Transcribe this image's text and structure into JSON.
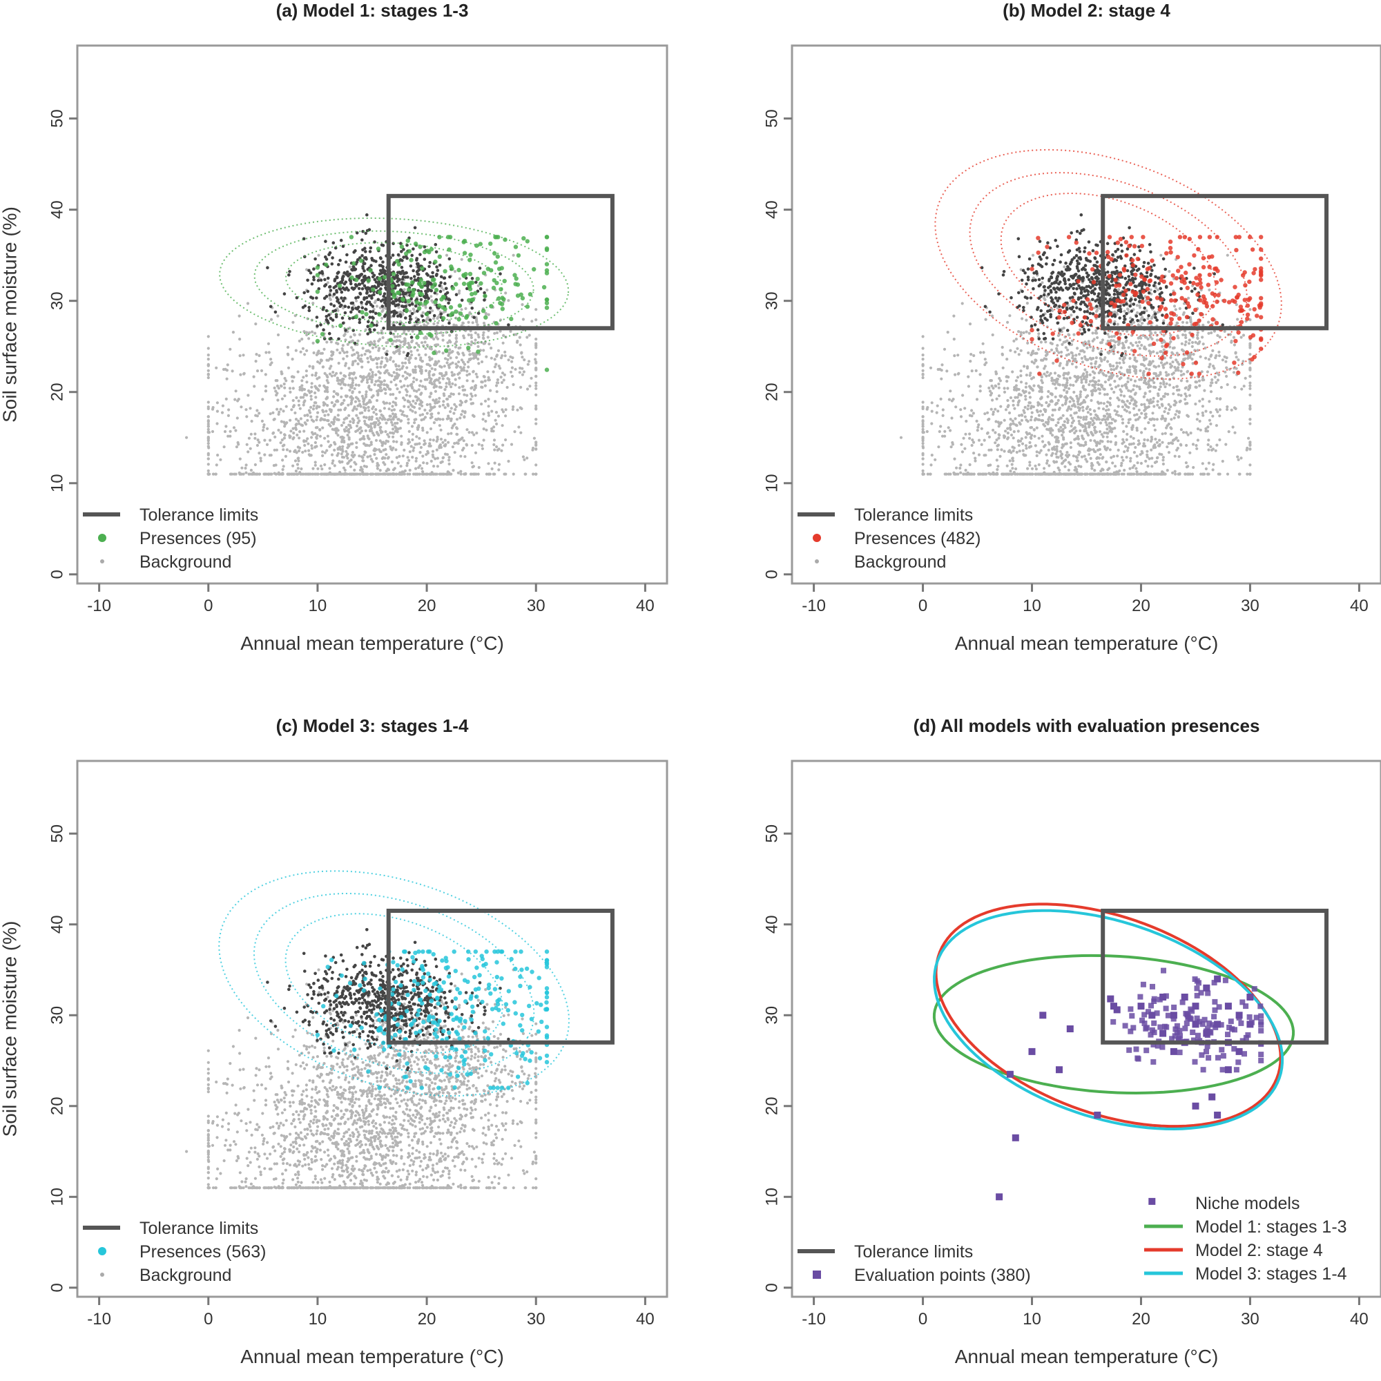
{
  "chart_data": [
    {
      "type": "scatter",
      "title": "(a) Model 1: stages 1-3",
      "xlabel": "Annual mean temperature (°C)",
      "ylabel": "Soil surface moisture (%)",
      "xlim": [
        -12,
        42
      ],
      "ylim": [
        -1,
        58
      ],
      "xticks": [
        -10,
        0,
        10,
        20,
        30,
        40
      ],
      "yticks": [
        0,
        10,
        20,
        30,
        40,
        50
      ],
      "tolerance_box": {
        "x": [
          16.5,
          37
        ],
        "y": [
          27,
          41.5
        ]
      },
      "presence_color": "#4caf50",
      "presence_cluster": {
        "cx": 22,
        "cy": 31.5,
        "sx": 5.5,
        "sy": 3,
        "n": 200
      },
      "ellipse": {
        "cx": 17,
        "cy": 32,
        "rx": 16,
        "ry": 7,
        "rot": -4,
        "style": "dotted"
      },
      "legend": {
        "position": "bottom-left",
        "entries": [
          "Tolerance limits",
          "Presences (95)",
          "Background"
        ]
      }
    },
    {
      "type": "scatter",
      "title": "(b) Model 2: stage 4",
      "xlabel": "Annual mean temperature (°C)",
      "ylabel": "",
      "xlim": [
        -12,
        42
      ],
      "ylim": [
        -1,
        58
      ],
      "xticks": [
        -10,
        0,
        10,
        20,
        30,
        40
      ],
      "yticks": [
        0,
        10,
        20,
        30,
        40,
        50
      ],
      "tolerance_box": {
        "x": [
          16.5,
          37
        ],
        "y": [
          27,
          41.5
        ]
      },
      "presence_color": "#e53b2c",
      "presence_cluster": {
        "cx": 23,
        "cy": 30.5,
        "sx": 5.5,
        "sy": 4,
        "n": 260
      },
      "ellipse": {
        "cx": 17,
        "cy": 34,
        "rx": 17,
        "ry": 11,
        "rot": -28,
        "style": "dotted"
      },
      "legend": {
        "position": "bottom-left",
        "entries": [
          "Tolerance limits",
          "Presences (482)",
          "Background"
        ]
      }
    },
    {
      "type": "scatter",
      "title": "(c) Model 3: stages 1-4",
      "xlabel": "Annual mean temperature (°C)",
      "ylabel": "Soil surface moisture (%)",
      "xlim": [
        -12,
        42
      ],
      "ylim": [
        -1,
        58
      ],
      "xticks": [
        -10,
        0,
        10,
        20,
        30,
        40
      ],
      "yticks": [
        0,
        10,
        20,
        30,
        40,
        50
      ],
      "tolerance_box": {
        "x": [
          16.5,
          37
        ],
        "y": [
          27,
          41.5
        ]
      },
      "presence_color": "#26c6da",
      "presence_cluster": {
        "cx": 23,
        "cy": 30.5,
        "sx": 5.5,
        "sy": 4,
        "n": 280
      },
      "ellipse": {
        "cx": 17,
        "cy": 33.5,
        "rx": 17,
        "ry": 11,
        "rot": -26,
        "style": "dotted"
      },
      "legend": {
        "position": "bottom-left",
        "entries": [
          "Tolerance limits",
          "Presences (563)",
          "Background"
        ]
      }
    },
    {
      "type": "scatter",
      "title": "(d) All models with evaluation presences",
      "xlabel": "Annual mean temperature (°C)",
      "ylabel": "",
      "xlim": [
        -12,
        42
      ],
      "ylim": [
        -1,
        58
      ],
      "xticks": [
        -10,
        0,
        10,
        20,
        30,
        40
      ],
      "yticks": [
        0,
        10,
        20,
        30,
        40,
        50
      ],
      "tolerance_box": {
        "x": [
          16.5,
          37
        ],
        "y": [
          27,
          41.5
        ]
      },
      "evaluation_color": "#6a4ca3",
      "evaluation_points": [
        [
          23,
          30
        ],
        [
          25,
          31
        ],
        [
          27,
          29
        ],
        [
          22,
          28
        ],
        [
          26,
          33
        ],
        [
          28,
          31
        ],
        [
          24,
          27
        ],
        [
          21,
          30
        ],
        [
          29,
          30
        ],
        [
          30,
          32
        ],
        [
          27,
          34
        ],
        [
          24,
          32
        ],
        [
          26,
          28
        ],
        [
          28,
          27
        ],
        [
          22,
          32
        ],
        [
          25,
          29
        ],
        [
          23,
          26
        ],
        [
          29,
          26
        ],
        [
          20,
          31
        ],
        [
          30,
          29
        ],
        [
          17.5,
          31
        ],
        [
          17.2,
          31.8
        ],
        [
          17.8,
          30.6
        ],
        [
          13.5,
          28.5
        ],
        [
          11,
          30
        ],
        [
          10,
          26
        ],
        [
          8,
          23.5
        ],
        [
          12.5,
          24
        ],
        [
          16,
          19
        ],
        [
          25,
          20
        ],
        [
          27,
          19
        ],
        [
          8.5,
          16.5
        ],
        [
          7,
          10
        ],
        [
          21,
          9.5
        ],
        [
          26.5,
          21
        ],
        [
          28,
          24
        ]
      ],
      "model_ellipses": [
        {
          "name": "Model 1: stages 1-3",
          "color": "#4caf50",
          "cx": 17.5,
          "cy": 29,
          "rx": 16.5,
          "ry": 7.5,
          "rot": -4
        },
        {
          "name": "Model 2: stage 4",
          "color": "#e53b2c",
          "cx": 17,
          "cy": 30,
          "rx": 17,
          "ry": 10.5,
          "rot": -28
        },
        {
          "name": "Model 3: stages 1-4",
          "color": "#26c6da",
          "cx": 17,
          "cy": 29.5,
          "rx": 17,
          "ry": 10.5,
          "rot": -26
        }
      ],
      "legend": {
        "position": "bottom-left",
        "entries": [
          "Tolerance limits",
          "Evaluation points (380)"
        ]
      },
      "legend_models": {
        "position": "bottom-right",
        "title": "Niche models",
        "entries": [
          "Model 1: stages 1-3",
          "Model 2: stage 4",
          "Model 3: stages 1-4"
        ]
      }
    }
  ]
}
